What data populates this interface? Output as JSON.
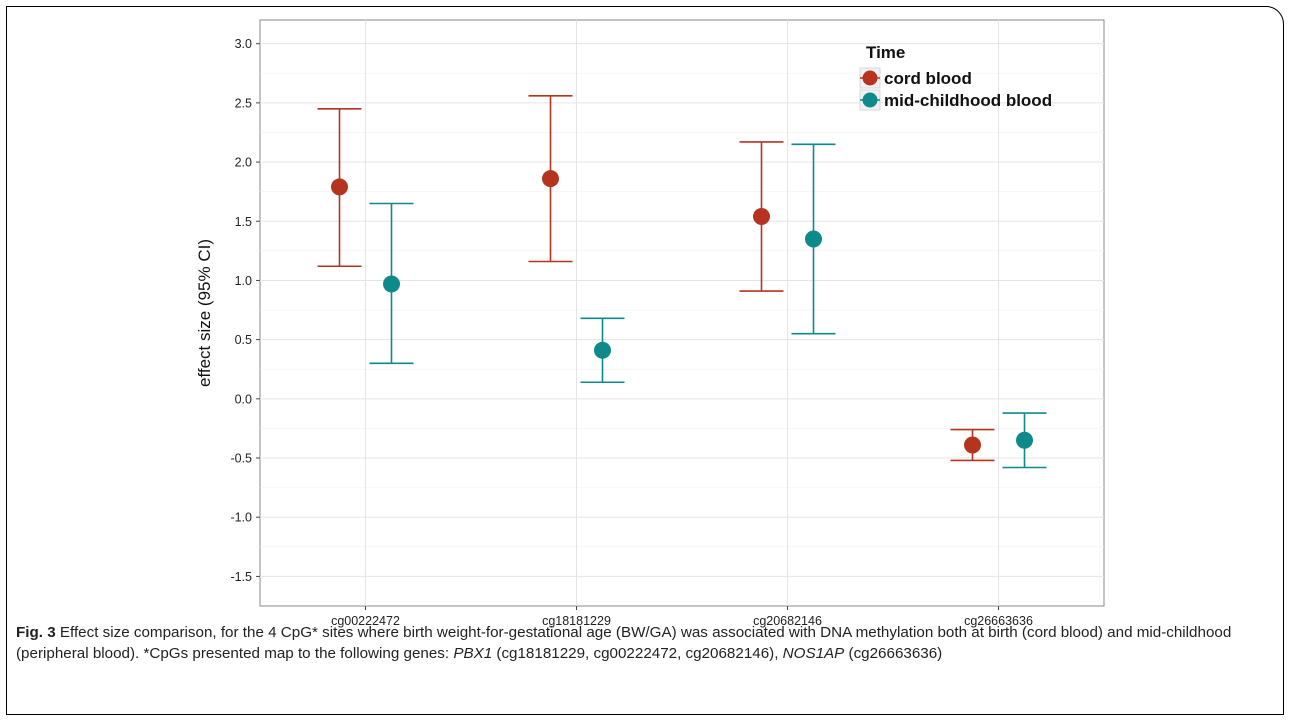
{
  "chart_data": {
    "type": "scatter",
    "ylabel": "effect size (95% CI)",
    "xlabel": "",
    "ylim": [
      -1.75,
      3.2
    ],
    "yticks": [
      "-1.5",
      "-1.0",
      "-0.5",
      "0.0",
      "0.5",
      "1.0",
      "1.5",
      "2.0",
      "2.5",
      "3.0"
    ],
    "categories": [
      "cg00222472",
      "cg18181229",
      "cg20682146",
      "cg26663636"
    ],
    "legend": {
      "title": "Time",
      "position": "top-right"
    },
    "grid": true,
    "series": [
      {
        "name": "cord blood",
        "color": "#b5341f",
        "values": [
          1.79,
          1.86,
          1.54,
          -0.39
        ],
        "lower": [
          1.12,
          1.16,
          0.91,
          -0.52
        ],
        "upper": [
          2.45,
          2.56,
          2.17,
          -0.26
        ]
      },
      {
        "name": "mid-childhood blood",
        "color": "#0e8a8a",
        "values": [
          0.97,
          0.41,
          1.35,
          -0.35
        ],
        "lower": [
          0.3,
          0.14,
          0.55,
          -0.58
        ],
        "upper": [
          1.65,
          0.68,
          2.15,
          -0.12
        ]
      }
    ]
  },
  "caption": {
    "label": "Fig. 3",
    "text1": " Effect size comparison, for the 4 CpG* sites where birth weight-for-gestational age (BW/GA) was associated with DNA methylation both at birth (cord blood) and mid-childhood (peripheral blood). *CpGs presented map to the following genes: ",
    "gene1": "PBX1",
    "text2": " (cg18181229, cg00222472, cg20682146), ",
    "gene2": "NOS1AP",
    "text3": " (cg26663636)"
  }
}
